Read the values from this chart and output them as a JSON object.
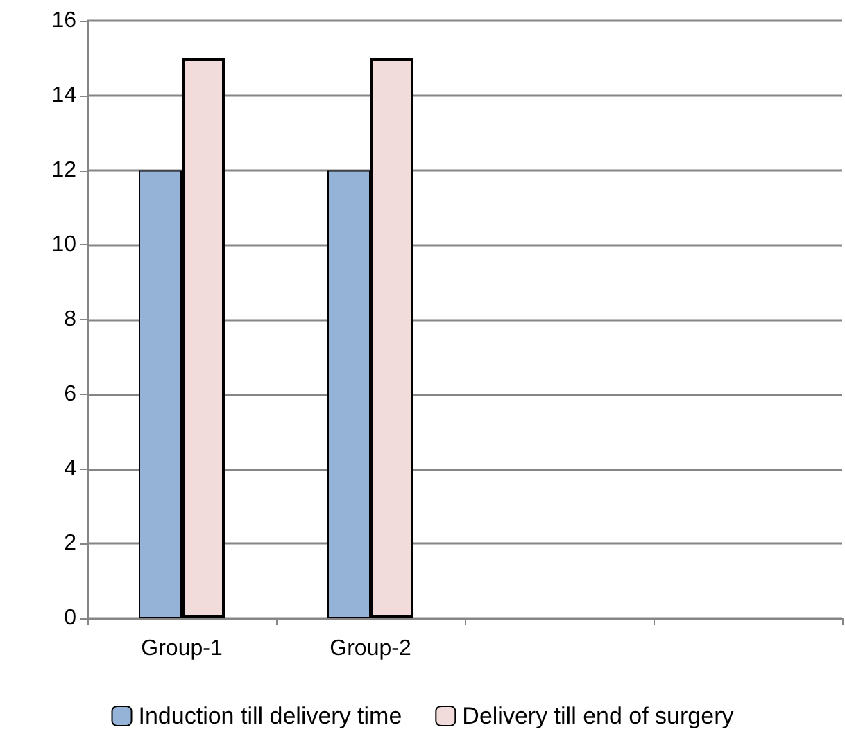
{
  "chart_data": {
    "type": "bar",
    "categories": [
      "Group-1",
      "Group-2",
      null,
      null
    ],
    "series": [
      {
        "name": "Induction till delivery time",
        "color": "#95b3d7",
        "values": [
          12,
          12,
          null,
          null
        ]
      },
      {
        "name": "Delivery till end of surgery",
        "color": "#f2dcdb",
        "values": [
          15,
          15,
          null,
          null
        ]
      }
    ],
    "ylim": [
      0,
      16
    ],
    "yticks": [
      0,
      2,
      4,
      6,
      8,
      10,
      12,
      14,
      16
    ],
    "grid": "y",
    "legend": "bottom"
  }
}
